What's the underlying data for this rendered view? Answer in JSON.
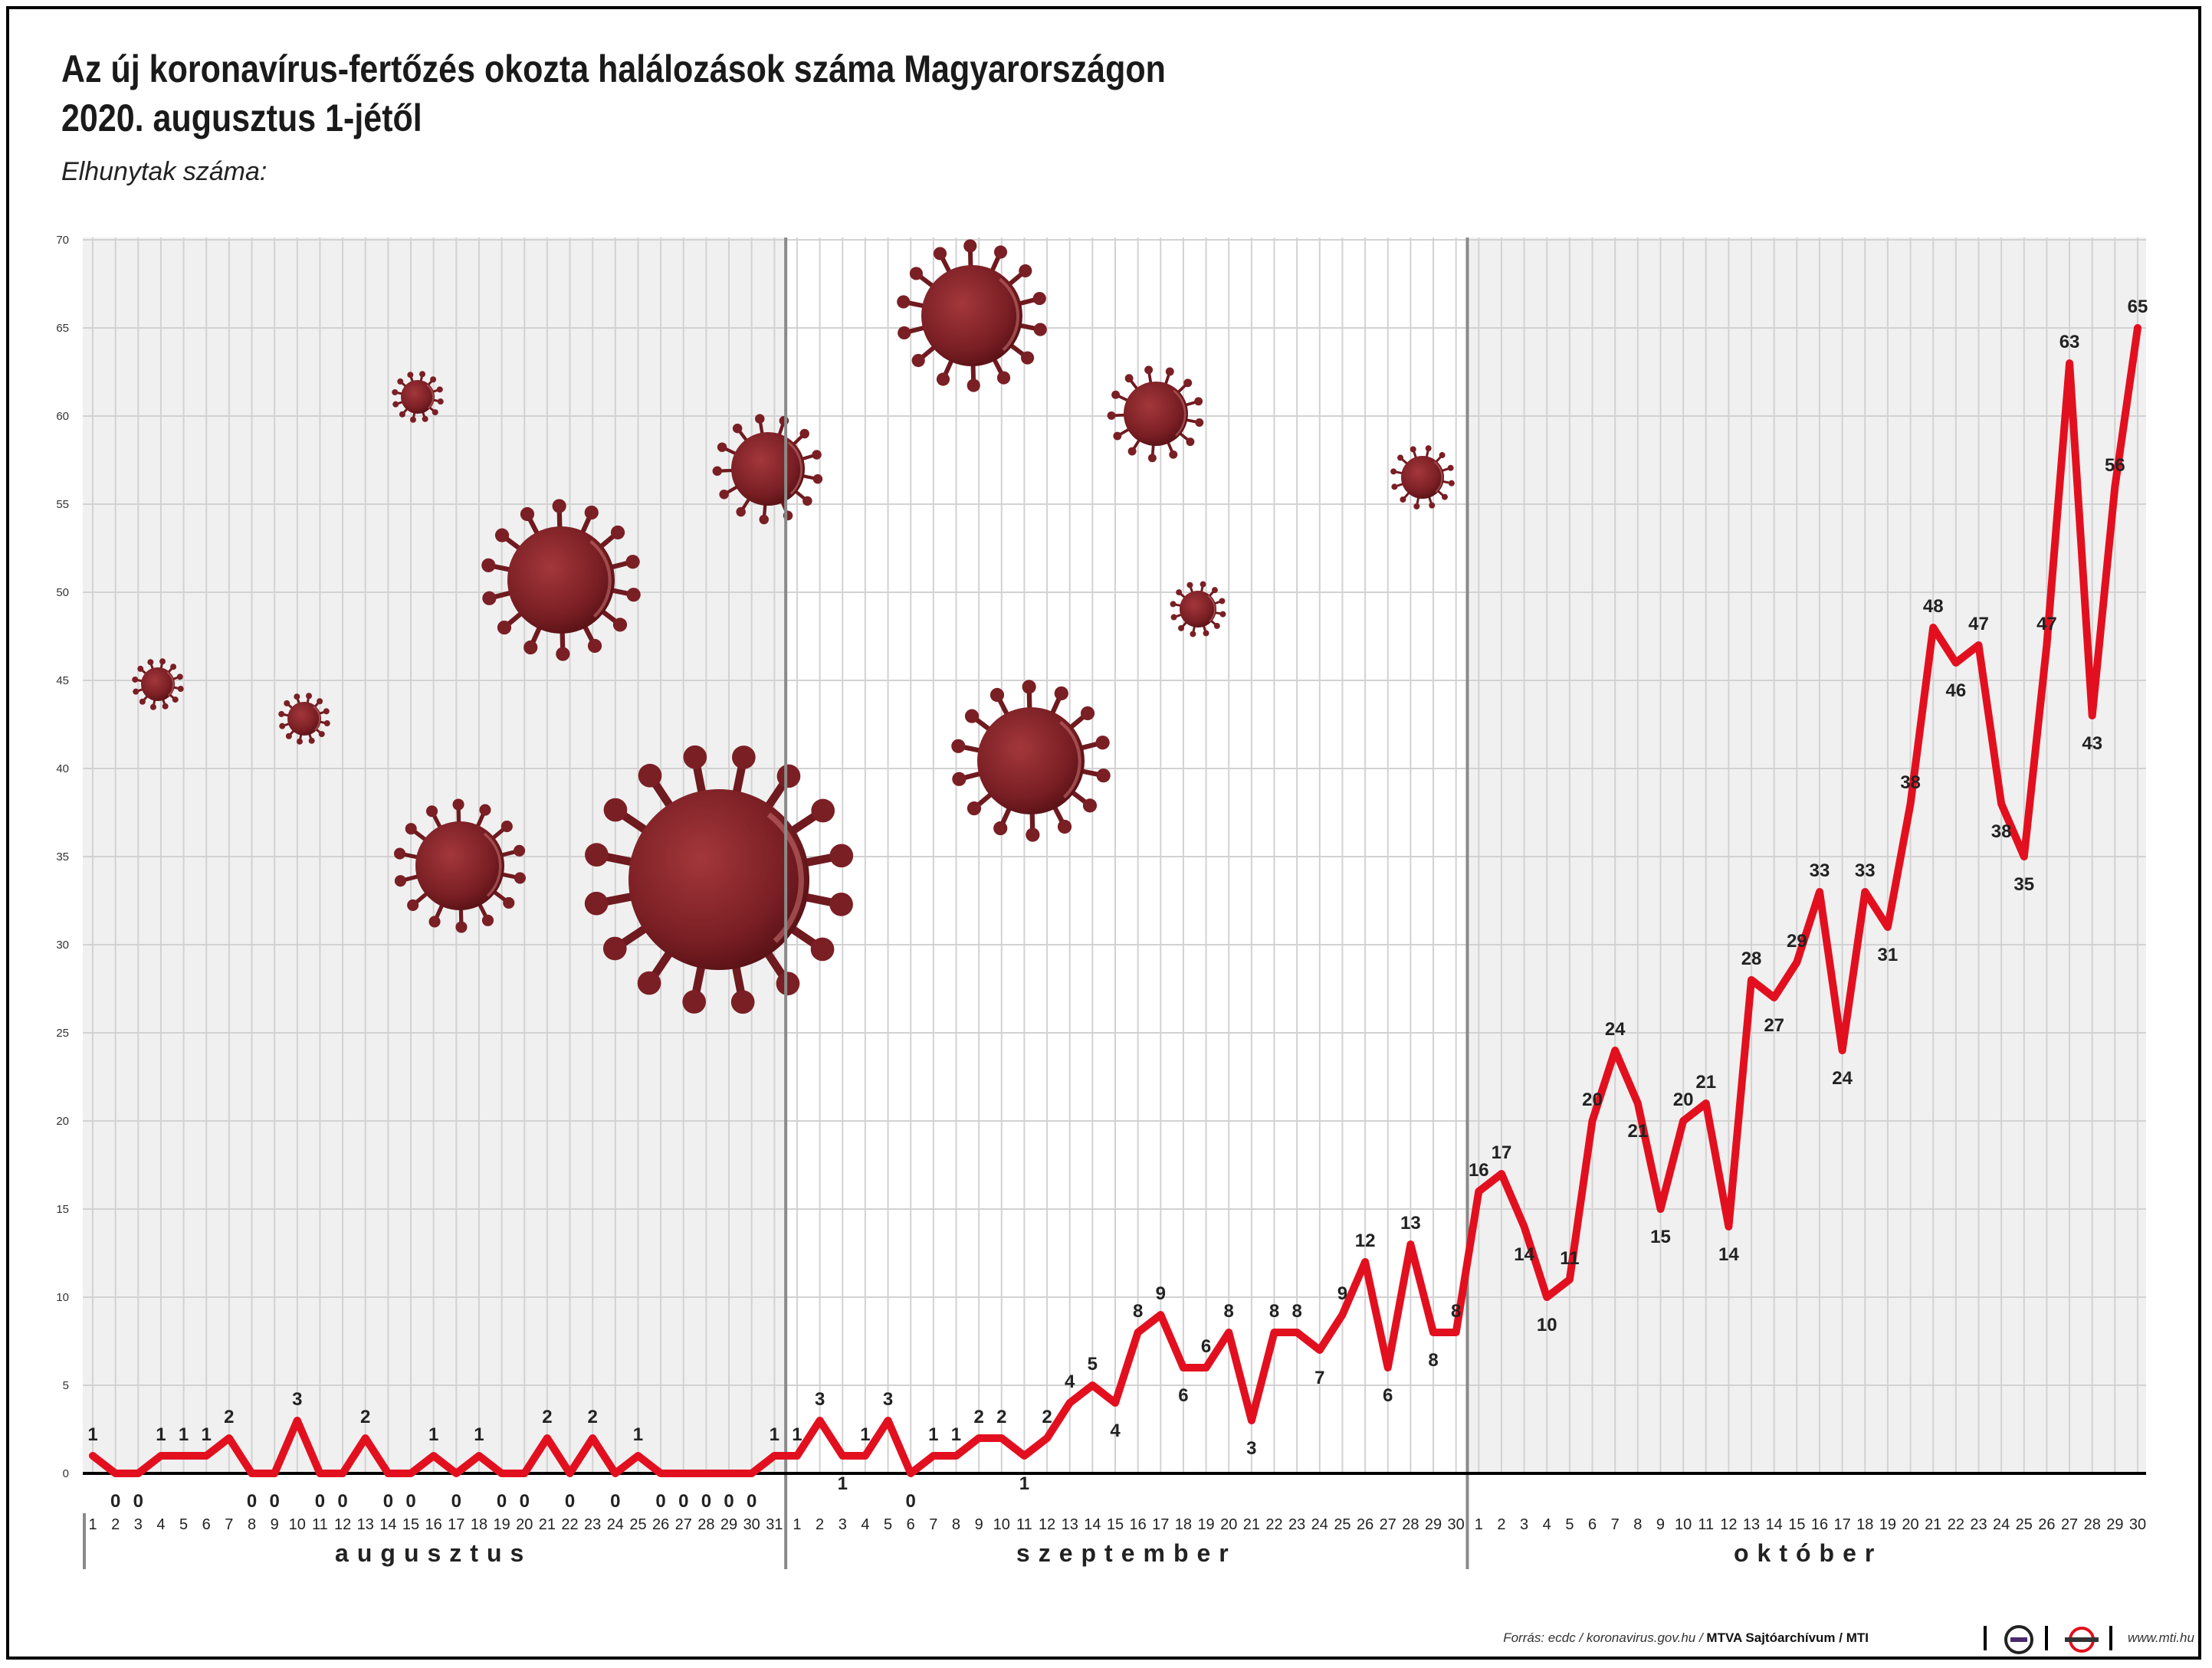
{
  "title_line1": "Az új koronavírus-fertőzés okozta halálozások száma Magyarországon",
  "title_line2": "2020. augusztus 1-jétől",
  "subtitle": "Elhunytak száma:",
  "footer": {
    "source_prefix": "Forrás: ecdc / koronavirus.gov.hu / ",
    "source_bold": "MTVA Sajtóarchívum / MTI",
    "website": "www.mti.hu"
  },
  "colors": {
    "line": "#e2101f",
    "virus": "#7a1f24",
    "grid": "#d2d2d2",
    "shade": "#f0f0f0"
  },
  "chart_data": {
    "type": "line",
    "ylim": [
      0,
      70
    ],
    "yticks": [
      0,
      5,
      10,
      15,
      20,
      25,
      30,
      35,
      40,
      45,
      50,
      55,
      60,
      65,
      70
    ],
    "grid": true,
    "months": [
      {
        "name": "augusztus",
        "days": 31
      },
      {
        "name": "szeptember",
        "days": 30
      },
      {
        "name": "október",
        "days": 30
      }
    ],
    "series": [
      {
        "values": [
          1,
          0,
          0,
          1,
          1,
          1,
          2,
          0,
          0,
          3,
          0,
          0,
          2,
          0,
          0,
          1,
          0,
          1,
          0,
          0,
          2,
          0,
          2,
          0,
          1,
          0,
          0,
          0,
          0,
          0,
          1,
          1,
          3,
          1,
          1,
          3,
          0,
          1,
          1,
          2,
          2,
          1,
          2,
          4,
          5,
          4,
          8,
          9,
          6,
          6,
          8,
          3,
          8,
          8,
          7,
          9,
          12,
          6,
          13,
          8,
          8,
          16,
          17,
          14,
          10,
          11,
          20,
          24,
          21,
          15,
          20,
          21,
          14,
          28,
          27,
          29,
          33,
          24,
          33,
          31,
          38,
          48,
          46,
          47,
          38,
          35,
          47,
          63,
          43,
          56,
          65
        ]
      }
    ]
  }
}
